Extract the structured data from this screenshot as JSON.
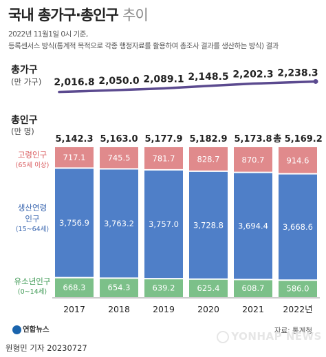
{
  "title_main": "국내 총가구·총인구",
  "title_suffix": "추이",
  "subtitle_line1": "2022년 11월1일 0시 기준,",
  "subtitle_line2": "등록센서스 방식(통계적 목적으로 각종 행정자료를 활용하여 총조사 결과를 생산하는 방식) 결과",
  "households_title": "총가구",
  "households_unit": "(만 가구)",
  "population_title": "총인구",
  "population_unit": "(만 명)",
  "segment_labels": {
    "elderly": "고령인구",
    "elderly_sub": "(65세 이상)",
    "working_line1": "생산연령",
    "working_line2": "인구",
    "working_sub": "(15~64세)",
    "youth": "유소년인구",
    "youth_sub": "(0~14세)"
  },
  "colors": {
    "households_line": "#5b4a8f",
    "elderly": "#e08a8c",
    "working": "#4f7fc8",
    "youth": "#7cc089",
    "elderly_label": "#d9595c",
    "working_label": "#3b67b0",
    "youth_label": "#3f9a55",
    "axis": "#999999"
  },
  "chart_data": [
    {
      "type": "line",
      "title": "총가구",
      "unit": "만 가구",
      "categories": [
        "2017",
        "2018",
        "2019",
        "2020",
        "2021",
        "2022년"
      ],
      "values": [
        2016.8,
        2050.0,
        2089.1,
        2148.5,
        2202.3,
        2238.3
      ],
      "labels": [
        "2,016.8",
        "2,050.0",
        "2,089.1",
        "2,148.5",
        "2,202.3",
        "2,238.3"
      ]
    },
    {
      "type": "bar",
      "stacked": true,
      "title": "총인구",
      "unit": "만 명",
      "categories": [
        "2017",
        "2018",
        "2019",
        "2020",
        "2021",
        "2022년"
      ],
      "series": [
        {
          "name": "유소년인구 (0~14세)",
          "values": [
            668.3,
            654.3,
            639.2,
            625.4,
            608.7,
            586.0
          ],
          "labels": [
            "668.3",
            "654.3",
            "639.2",
            "625.4",
            "608.7",
            "586.0"
          ]
        },
        {
          "name": "생산연령인구 (15~64세)",
          "values": [
            3756.9,
            3763.2,
            3757.0,
            3728.8,
            3694.4,
            3668.6
          ],
          "labels": [
            "3,756.9",
            "3,763.2",
            "3,757.0",
            "3,728.8",
            "3,694.4",
            "3,668.6"
          ]
        },
        {
          "name": "고령인구 (65세 이상)",
          "values": [
            717.1,
            745.5,
            781.7,
            828.7,
            870.7,
            914.6
          ],
          "labels": [
            "717.1",
            "745.5",
            "781.7",
            "828.7",
            "870.7",
            "914.6"
          ]
        }
      ],
      "totals": [
        5142.3,
        5163.0,
        5177.9,
        5182.9,
        5173.8,
        5169.2
      ],
      "total_labels": [
        "5,142.3",
        "5,163.0",
        "5,177.9",
        "5,182.9",
        "5,173.8",
        "총 5,169.2"
      ]
    }
  ],
  "footer": {
    "logo": "연합뉴스",
    "source": "자료: 통계청",
    "credit": "원형민 기자  20230727",
    "watermark": "YONHAP NEWS"
  }
}
